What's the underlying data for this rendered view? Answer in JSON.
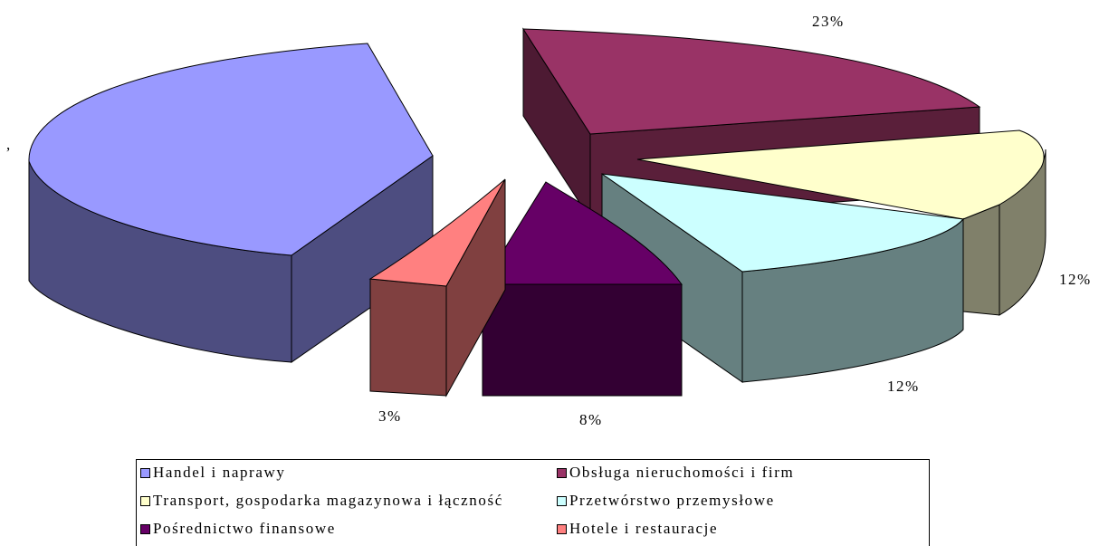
{
  "chart_data": {
    "type": "pie",
    "title": "",
    "slices": [
      {
        "name": "Handel i naprawy",
        "value": null,
        "label": ",",
        "color": "#9999ff",
        "side": "#4d4d80",
        "front": "#4d4d80"
      },
      {
        "name": "Obsługa nieruchomości i firm",
        "value": 23,
        "label": "23%",
        "color": "#993366",
        "side": "#4d1a33",
        "front": "#5a1f3a"
      },
      {
        "name": "Transport, gospodarka magazynowa i łączność",
        "value": 12,
        "label": "12%",
        "color": "#ffffcc",
        "side": "#80806a",
        "front": "#80806a"
      },
      {
        "name": "Przetwórstwo przemysłowe",
        "value": 12,
        "label": "12%",
        "color": "#ccffff",
        "side": "#668080",
        "front": "#668080"
      },
      {
        "name": "Pośrednictwo finansowe",
        "value": 8,
        "label": "8%",
        "color": "#660066",
        "side": "#330033",
        "front": "#330033"
      },
      {
        "name": "Hotele i restauracje",
        "value": 3,
        "label": "3%",
        "color": "#ff8080",
        "side": "#804040",
        "front": "#804040"
      }
    ],
    "legend_position": "bottom"
  }
}
